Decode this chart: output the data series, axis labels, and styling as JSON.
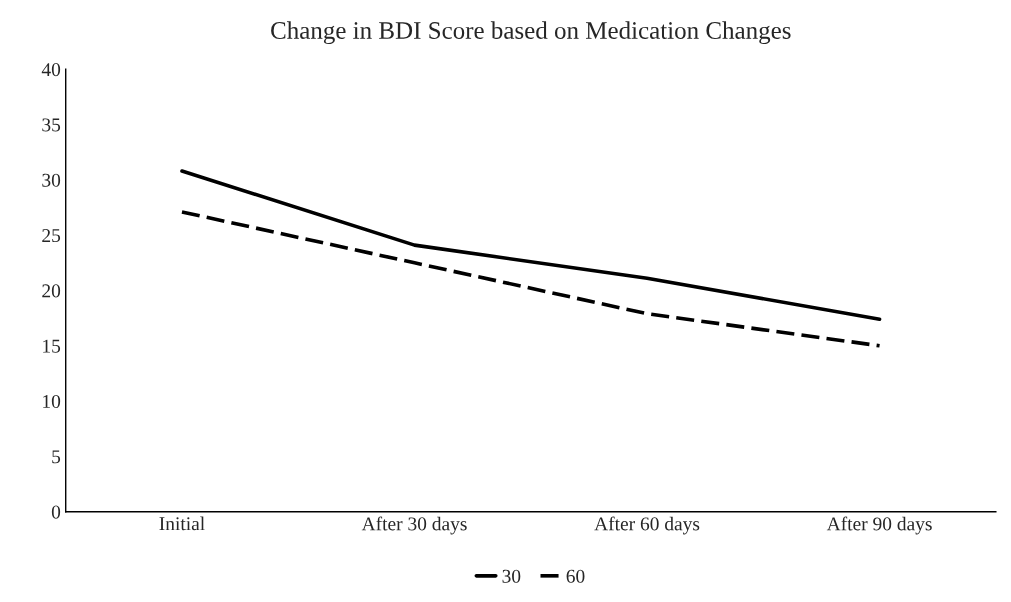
{
  "chart_data": {
    "type": "line",
    "title": "Change in BDI Score based on Medication Changes",
    "categories": [
      "Initial",
      "After 30 days",
      "After 60 days",
      "After 90 days"
    ],
    "series": [
      {
        "name": "30",
        "color": "#000000",
        "line_style": "solid",
        "values": [
          30.8,
          24.1,
          21.1,
          17.4
        ]
      },
      {
        "name": "60",
        "color": "#000000",
        "line_style": "dashed",
        "values": [
          27.1,
          22.5,
          17.9,
          15.0
        ]
      }
    ],
    "ylim": [
      0,
      40
    ],
    "yticks": [
      0,
      5,
      10,
      15,
      20,
      25,
      30,
      35,
      40
    ],
    "grid": false,
    "legend": "bottom",
    "marker": "none"
  }
}
